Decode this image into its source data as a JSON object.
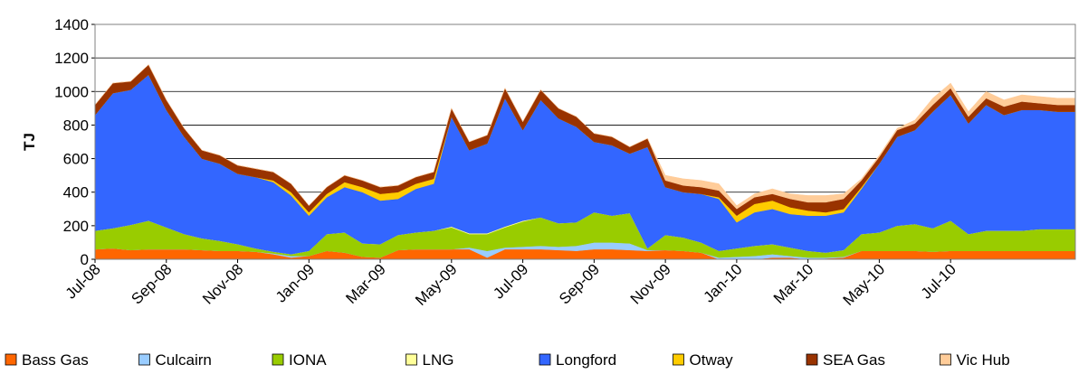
{
  "chart_data": {
    "type": "stacked-area",
    "y_label": "TJ",
    "categories": [
      "Jul-08",
      null,
      null,
      null,
      "Sep-08",
      null,
      null,
      null,
      "Nov-08",
      null,
      null,
      null,
      "Jan-09",
      null,
      null,
      null,
      "Mar-09",
      null,
      null,
      null,
      "May-09",
      null,
      null,
      null,
      "Jul-09",
      null,
      null,
      null,
      "Sep-09",
      null,
      null,
      null,
      "Nov-09",
      null,
      null,
      null,
      "Jan-10",
      null,
      null,
      null,
      "Mar-10",
      null,
      null,
      null,
      "May-10",
      null,
      null,
      null,
      "Jul-10",
      null,
      null,
      null,
      null,
      null,
      null,
      null
    ],
    "ylim": [
      0,
      1400
    ],
    "yticks": [
      0,
      200,
      400,
      600,
      800,
      1000,
      1200,
      1400
    ],
    "grid": true,
    "legend": "bottom",
    "series": [
      {
        "name": "Bass Gas",
        "color": "#ff6600",
        "values": [
          60,
          65,
          55,
          60,
          60,
          60,
          55,
          50,
          50,
          45,
          30,
          10,
          20,
          50,
          40,
          15,
          10,
          55,
          60,
          60,
          60,
          60,
          10,
          60,
          60,
          60,
          55,
          50,
          60,
          60,
          55,
          50,
          55,
          50,
          40,
          0,
          0,
          0,
          10,
          10,
          0,
          5,
          10,
          50,
          50,
          50,
          50,
          45,
          50,
          50,
          50,
          50,
          50,
          50,
          50,
          50
        ]
      },
      {
        "name": "Culcairn",
        "color": "#99ccff",
        "values": [
          0,
          0,
          0,
          0,
          0,
          0,
          0,
          0,
          0,
          0,
          5,
          10,
          0,
          0,
          0,
          0,
          0,
          0,
          0,
          0,
          0,
          10,
          40,
          10,
          15,
          20,
          20,
          30,
          40,
          40,
          40,
          5,
          0,
          0,
          0,
          10,
          15,
          20,
          20,
          10,
          10,
          5,
          5,
          0,
          0,
          0,
          0,
          0,
          0,
          0,
          0,
          0,
          0,
          0,
          0,
          0
        ]
      },
      {
        "name": "IONA",
        "color": "#99cc00",
        "values": [
          110,
          120,
          150,
          170,
          130,
          90,
          70,
          60,
          40,
          20,
          10,
          10,
          30,
          100,
          120,
          80,
          80,
          90,
          100,
          110,
          130,
          80,
          100,
          120,
          150,
          170,
          140,
          140,
          180,
          160,
          180,
          10,
          90,
          80,
          60,
          40,
          50,
          60,
          60,
          50,
          40,
          30,
          40,
          100,
          110,
          150,
          160,
          140,
          180,
          100,
          120,
          120,
          120,
          130,
          130,
          130
        ]
      },
      {
        "name": "LNG",
        "color": "#ffff99",
        "values": [
          0,
          0,
          0,
          0,
          0,
          0,
          0,
          0,
          0,
          0,
          0,
          0,
          0,
          0,
          0,
          0,
          0,
          0,
          0,
          0,
          5,
          5,
          5,
          5,
          5,
          0,
          0,
          0,
          0,
          0,
          0,
          0,
          0,
          0,
          0,
          0,
          0,
          0,
          0,
          0,
          0,
          0,
          0,
          0,
          0,
          0,
          0,
          0,
          0,
          0,
          0,
          0,
          0,
          0,
          0,
          0
        ]
      },
      {
        "name": "Longford",
        "color": "#3366ff",
        "values": [
          690,
          805,
          805,
          870,
          700,
          580,
          475,
          460,
          420,
          425,
          415,
          350,
          210,
          220,
          270,
          305,
          260,
          215,
          260,
          280,
          655,
          495,
          535,
          765,
          540,
          700,
          625,
          570,
          420,
          420,
          355,
          605,
          285,
          270,
          290,
          310,
          155,
          200,
          210,
          200,
          210,
          220,
          225,
          270,
          410,
          530,
          560,
          695,
          750,
          660,
          750,
          690,
          720,
          710,
          700,
          700
        ]
      },
      {
        "name": "Otway",
        "color": "#ffcc00",
        "values": [
          0,
          0,
          0,
          0,
          0,
          0,
          0,
          0,
          0,
          0,
          10,
          20,
          20,
          20,
          30,
          30,
          40,
          40,
          30,
          30,
          0,
          0,
          0,
          0,
          0,
          0,
          0,
          0,
          0,
          0,
          0,
          0,
          0,
          0,
          0,
          10,
          40,
          50,
          50,
          40,
          30,
          20,
          20,
          10,
          0,
          0,
          0,
          0,
          0,
          0,
          0,
          0,
          0,
          0,
          0,
          0
        ]
      },
      {
        "name": "SEA Gas",
        "color": "#993300",
        "values": [
          60,
          60,
          50,
          60,
          60,
          50,
          50,
          50,
          50,
          50,
          50,
          50,
          40,
          40,
          40,
          40,
          40,
          40,
          40,
          40,
          50,
          50,
          50,
          60,
          50,
          60,
          60,
          60,
          50,
          50,
          40,
          50,
          40,
          40,
          40,
          40,
          40,
          40,
          40,
          50,
          50,
          60,
          60,
          40,
          40,
          40,
          40,
          40,
          40,
          40,
          40,
          50,
          50,
          40,
          40,
          40
        ]
      },
      {
        "name": "Vic Hub",
        "color": "#ffcc99",
        "values": [
          0,
          0,
          0,
          0,
          0,
          0,
          0,
          0,
          0,
          0,
          0,
          0,
          0,
          0,
          0,
          0,
          0,
          0,
          0,
          0,
          0,
          0,
          0,
          0,
          0,
          0,
          0,
          0,
          0,
          0,
          0,
          0,
          30,
          40,
          40,
          40,
          20,
          20,
          30,
          30,
          40,
          40,
          30,
          10,
          10,
          10,
          20,
          40,
          30,
          30,
          40,
          40,
          40,
          40,
          40,
          40
        ]
      }
    ]
  }
}
